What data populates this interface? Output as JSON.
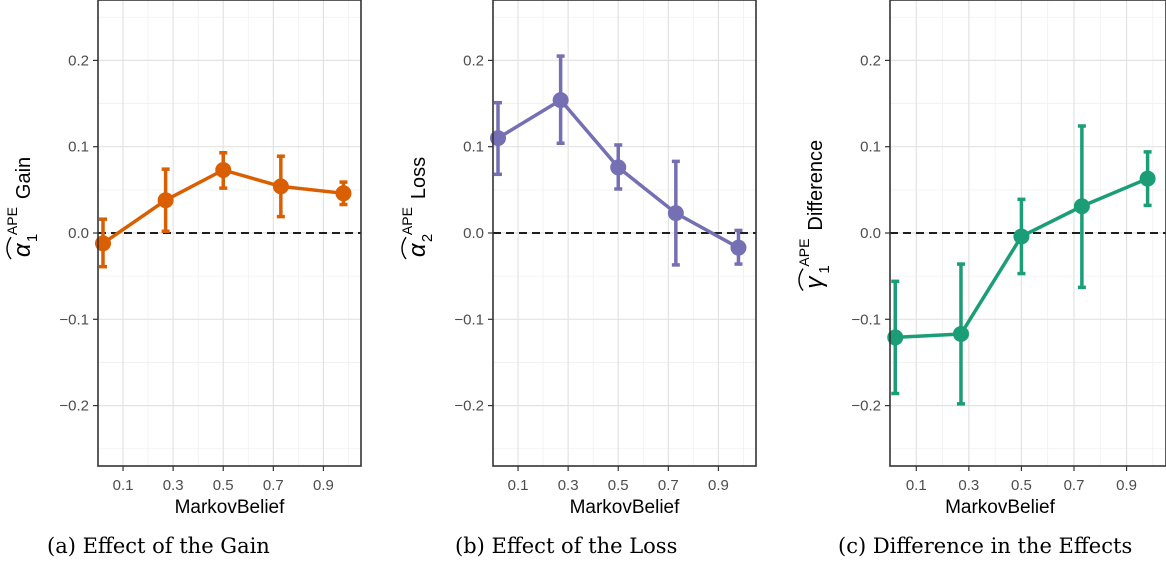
{
  "chart_data": [
    {
      "type": "line",
      "xlabel": "MarkovBelief",
      "ylabel": {
        "symbol": "α",
        "sub": "1",
        "sup": "APE",
        "word": "Gain"
      },
      "caption": "(a) Effect of the Gain",
      "x_ticks": [
        "0.1",
        "0.3",
        "0.5",
        "0.7",
        "0.9"
      ],
      "y_ticks": [
        "0.2",
        "0.1",
        "0.0",
        "−0.1",
        "−0.2"
      ],
      "xlim": [
        0.0,
        1.05
      ],
      "ylim": [
        -0.27,
        0.27
      ],
      "grid": true,
      "reference_line": 0.0,
      "color": "#D95F02",
      "series": [
        {
          "x": [
            0.02,
            0.27,
            0.5,
            0.73,
            0.98
          ],
          "y": [
            -0.012,
            0.038,
            0.073,
            0.054,
            0.046
          ],
          "lower": [
            -0.039,
            0.002,
            0.052,
            0.019,
            0.033
          ],
          "upper": [
            0.016,
            0.074,
            0.093,
            0.089,
            0.059
          ]
        }
      ]
    },
    {
      "type": "line",
      "xlabel": "MarkovBelief",
      "ylabel": {
        "symbol": "α",
        "sub": "2",
        "sup": "APE",
        "word": "Loss"
      },
      "caption": "(b) Effect of the Loss",
      "x_ticks": [
        "0.1",
        "0.3",
        "0.5",
        "0.7",
        "0.9"
      ],
      "y_ticks": [
        "0.2",
        "0.1",
        "0.0",
        "−0.1",
        "−0.2"
      ],
      "xlim": [
        0.0,
        1.05
      ],
      "ylim": [
        -0.27,
        0.27
      ],
      "grid": true,
      "reference_line": 0.0,
      "color": "#7570B3",
      "series": [
        {
          "x": [
            0.02,
            0.27,
            0.5,
            0.73,
            0.98
          ],
          "y": [
            0.11,
            0.154,
            0.076,
            0.023,
            -0.017
          ],
          "lower": [
            0.068,
            0.104,
            0.051,
            -0.037,
            -0.036
          ],
          "upper": [
            0.151,
            0.205,
            0.102,
            0.083,
            0.003
          ]
        }
      ]
    },
    {
      "type": "line",
      "xlabel": "MarkovBelief",
      "ylabel": {
        "symbol": "γ",
        "sub": "1",
        "sup": "APE",
        "word": "Difference"
      },
      "caption": "(c) Difference in the Effects",
      "x_ticks": [
        "0.1",
        "0.3",
        "0.5",
        "0.7",
        "0.9"
      ],
      "y_ticks": [
        "0.2",
        "0.1",
        "0.0",
        "−0.1",
        "−0.2"
      ],
      "xlim": [
        0.0,
        1.05
      ],
      "ylim": [
        -0.27,
        0.27
      ],
      "grid": true,
      "reference_line": 0.0,
      "color": "#1B9E77",
      "series": [
        {
          "x": [
            0.02,
            0.27,
            0.5,
            0.73,
            0.98
          ],
          "y": [
            -0.121,
            -0.117,
            -0.004,
            0.031,
            0.063
          ],
          "lower": [
            -0.186,
            -0.198,
            -0.047,
            -0.063,
            0.032
          ],
          "upper": [
            -0.056,
            -0.036,
            0.039,
            0.124,
            0.094
          ]
        }
      ]
    }
  ]
}
